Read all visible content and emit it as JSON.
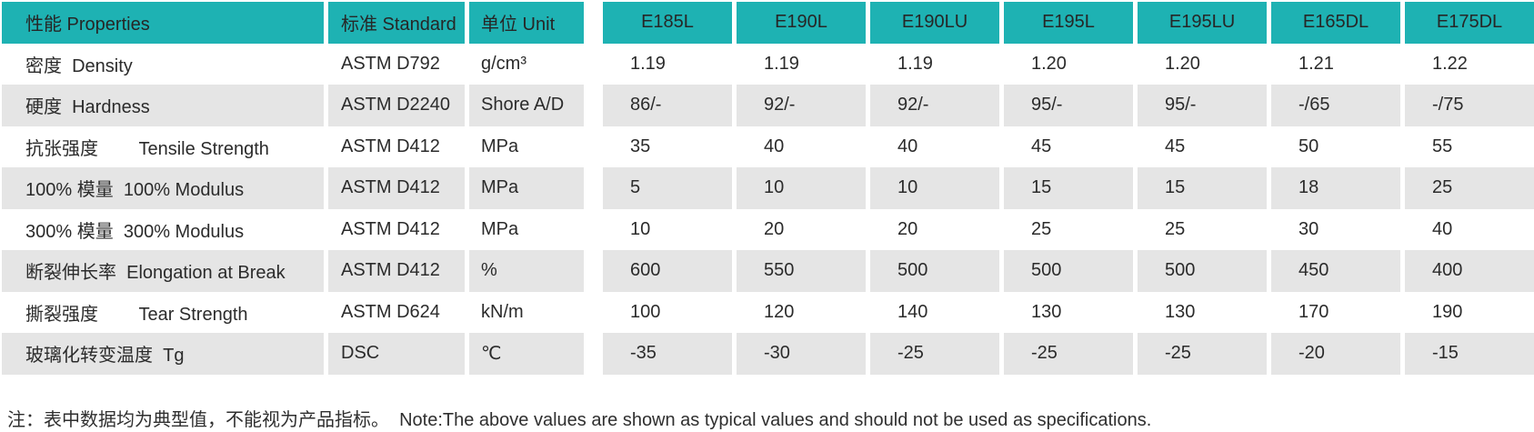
{
  "colors": {
    "header_teal": "#1eb2b3",
    "row_alt_gray": "#e5e5e5",
    "text": "#2b2b2b"
  },
  "table": {
    "columns": [
      {
        "key": "properties",
        "label": "性能 Properties"
      },
      {
        "key": "standard",
        "label": "标准 Standard"
      },
      {
        "key": "unit",
        "label": "单位 Unit"
      },
      {
        "key": "e185l",
        "label": "E185L"
      },
      {
        "key": "e190l",
        "label": "E190L"
      },
      {
        "key": "e190lu",
        "label": "E190LU"
      },
      {
        "key": "e195l",
        "label": "E195L"
      },
      {
        "key": "e195lu",
        "label": "E195LU"
      },
      {
        "key": "e165dl",
        "label": "E165DL"
      },
      {
        "key": "e175dl",
        "label": "E175DL"
      }
    ],
    "rows": [
      {
        "property": "密度  Density",
        "standard": "ASTM D792",
        "unit": "g/cm³",
        "values": [
          "1.19",
          "1.19",
          "1.19",
          "1.20",
          "1.20",
          "1.21",
          "1.22"
        ]
      },
      {
        "property": "硬度  Hardness",
        "standard": "ASTM D2240",
        "unit": "Shore A/D",
        "values": [
          "86/-",
          "92/-",
          "92/-",
          "95/-",
          "95/-",
          "-/65",
          "-/75"
        ]
      },
      {
        "property": "抗张强度        Tensile Strength",
        "standard": "ASTM D412",
        "unit": "MPa",
        "values": [
          "35",
          "40",
          "40",
          "45",
          "45",
          "50",
          "55"
        ]
      },
      {
        "property": "100% 模量  100% Modulus",
        "standard": "ASTM D412",
        "unit": "MPa",
        "values": [
          "5",
          "10",
          "10",
          "15",
          "15",
          "18",
          "25"
        ]
      },
      {
        "property": "300% 模量  300% Modulus",
        "standard": "ASTM D412",
        "unit": "MPa",
        "values": [
          "10",
          "20",
          "20",
          "25",
          "25",
          "30",
          "40"
        ]
      },
      {
        "property": "断裂伸长率  Elongation at Break",
        "standard": "ASTM D412",
        "unit": "%",
        "values": [
          "600",
          "550",
          "500",
          "500",
          "500",
          "450",
          "400"
        ]
      },
      {
        "property": "撕裂强度        Tear Strength",
        "standard": "ASTM D624",
        "unit": "kN/m",
        "values": [
          "100",
          "120",
          "140",
          "130",
          "130",
          "170",
          "190"
        ]
      },
      {
        "property": "玻璃化转变温度  Tg",
        "standard": "DSC",
        "unit": "℃",
        "values": [
          "-35",
          "-30",
          "-25",
          "-25",
          "-25",
          "-20",
          "-15"
        ]
      }
    ]
  },
  "note": "注：表中数据均为典型值，不能视为产品指标。  Note:The above values are shown as typical values and should not be used as specifications."
}
